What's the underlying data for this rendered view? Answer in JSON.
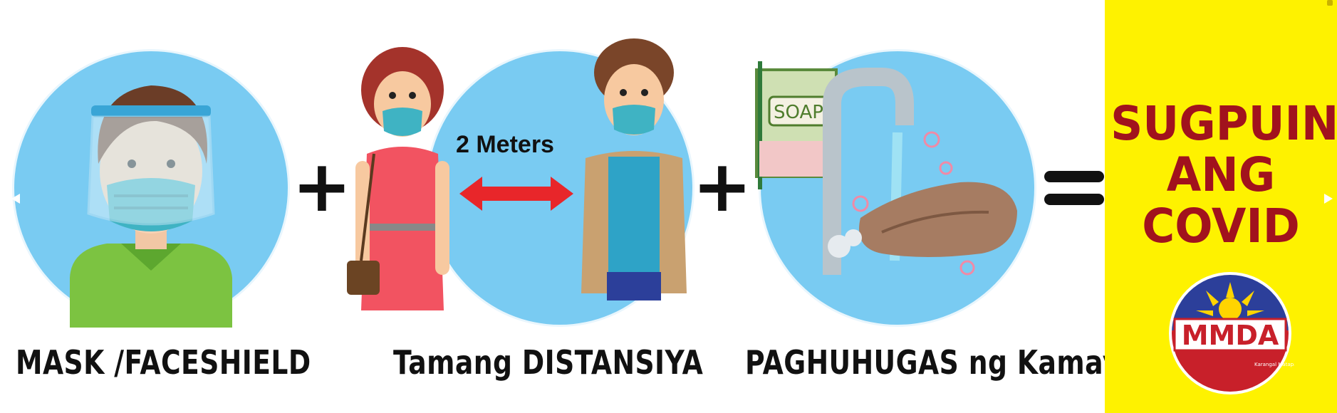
{
  "captions": {
    "mask": "MASK /FACESHIELD",
    "distance": "Tamang DISTANSIYA",
    "handwash": "PAGHUHUGAS ng Kamay"
  },
  "distance_label": "2 Meters",
  "soap_label": "SOAP",
  "slogan": {
    "line1": "SUGPUIN",
    "line2": "ANG",
    "line3": "COVID"
  },
  "logo": {
    "text": "MMDA",
    "motto": "Karangal Matapat Dispinado Ato."
  },
  "colors": {
    "circle": "#79cbf2",
    "panel": "#fef200",
    "slogan": "#a1121d",
    "arrow": "#e8262a"
  },
  "icons": [
    "plus-icon",
    "equals-icon",
    "mmda-logo"
  ]
}
